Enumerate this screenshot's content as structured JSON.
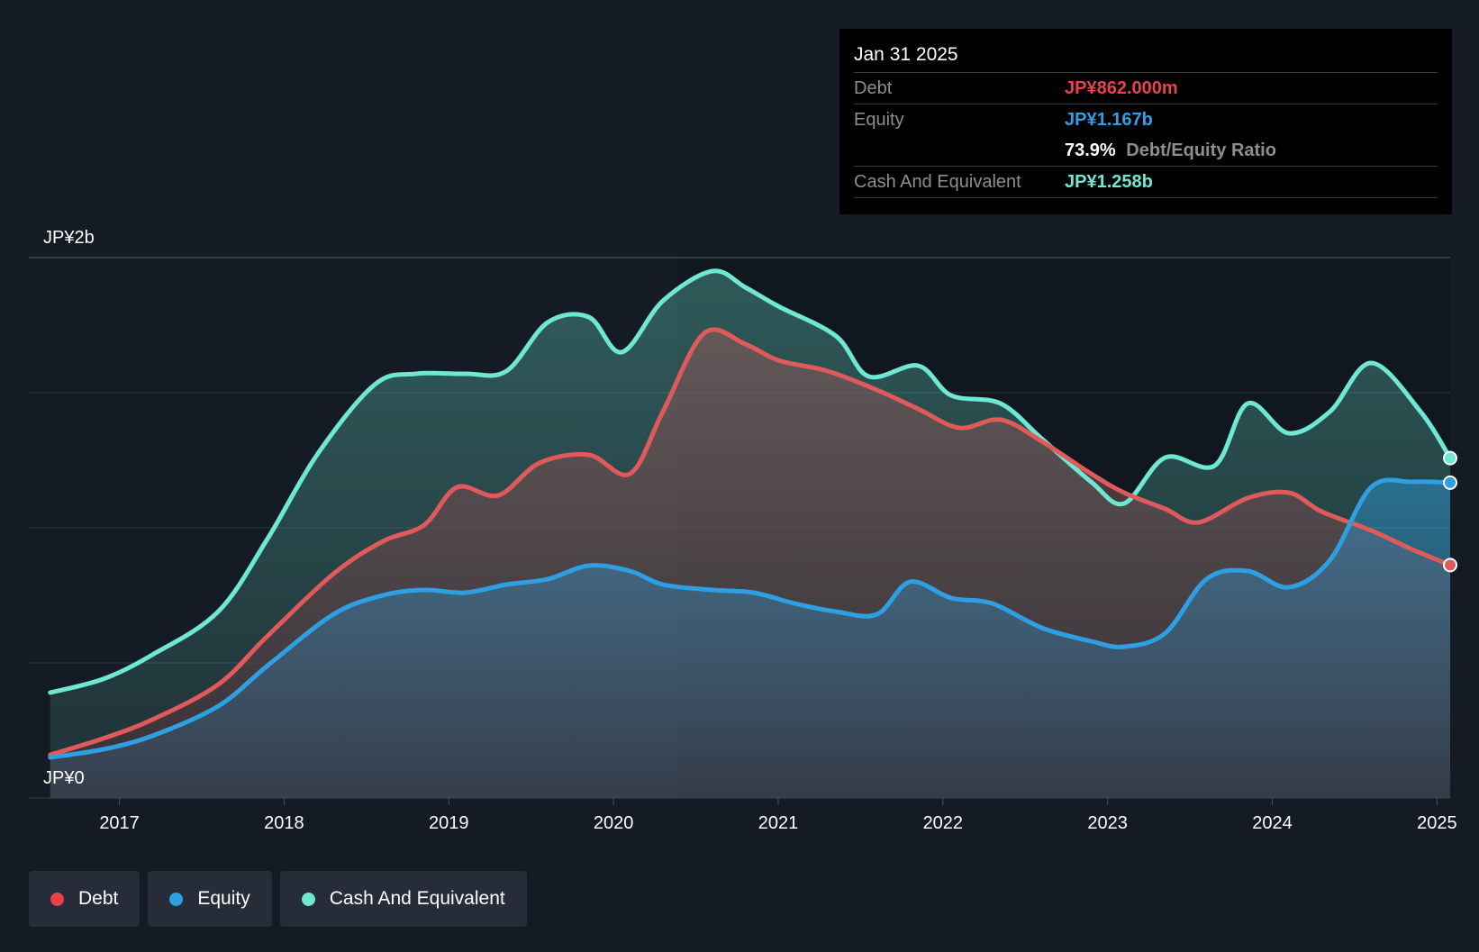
{
  "chart_data": {
    "type": "area",
    "y_axis_labels": {
      "top": "JP¥2b",
      "bottom": "JP¥0"
    },
    "ylim": [
      0,
      2000
    ],
    "xlim": [
      2016.45,
      2025.08
    ],
    "x_ticks": [
      "2017",
      "2018",
      "2019",
      "2020",
      "2021",
      "2022",
      "2023",
      "2024",
      "2025"
    ],
    "grid": true,
    "legend_position": "bottom-left",
    "series": [
      {
        "name": "Cash And Equivalent",
        "color": "#6ee7d3",
        "points": [
          [
            2016.58,
            390
          ],
          [
            2016.9,
            440
          ],
          [
            2017.2,
            530
          ],
          [
            2017.6,
            690
          ],
          [
            2017.9,
            960
          ],
          [
            2018.2,
            1270
          ],
          [
            2018.55,
            1530
          ],
          [
            2018.8,
            1570
          ],
          [
            2019.1,
            1570
          ],
          [
            2019.35,
            1580
          ],
          [
            2019.6,
            1760
          ],
          [
            2019.85,
            1780
          ],
          [
            2020.05,
            1650
          ],
          [
            2020.3,
            1840
          ],
          [
            2020.6,
            1950
          ],
          [
            2020.8,
            1890
          ],
          [
            2021.0,
            1820
          ],
          [
            2021.35,
            1710
          ],
          [
            2021.55,
            1560
          ],
          [
            2021.85,
            1600
          ],
          [
            2022.05,
            1490
          ],
          [
            2022.35,
            1460
          ],
          [
            2022.6,
            1330
          ],
          [
            2022.9,
            1170
          ],
          [
            2023.1,
            1090
          ],
          [
            2023.35,
            1260
          ],
          [
            2023.65,
            1230
          ],
          [
            2023.85,
            1460
          ],
          [
            2024.1,
            1350
          ],
          [
            2024.35,
            1430
          ],
          [
            2024.6,
            1610
          ],
          [
            2024.9,
            1430
          ],
          [
            2025.08,
            1258
          ]
        ]
      },
      {
        "name": "Debt",
        "color": "#e05a5a",
        "points": [
          [
            2016.58,
            160
          ],
          [
            2016.9,
            220
          ],
          [
            2017.2,
            290
          ],
          [
            2017.6,
            420
          ],
          [
            2017.9,
            600
          ],
          [
            2018.3,
            830
          ],
          [
            2018.6,
            950
          ],
          [
            2018.85,
            1010
          ],
          [
            2019.05,
            1150
          ],
          [
            2019.3,
            1120
          ],
          [
            2019.55,
            1240
          ],
          [
            2019.85,
            1270
          ],
          [
            2020.1,
            1200
          ],
          [
            2020.3,
            1430
          ],
          [
            2020.55,
            1720
          ],
          [
            2020.8,
            1680
          ],
          [
            2021.0,
            1620
          ],
          [
            2021.3,
            1580
          ],
          [
            2021.6,
            1510
          ],
          [
            2021.85,
            1440
          ],
          [
            2022.1,
            1370
          ],
          [
            2022.35,
            1400
          ],
          [
            2022.6,
            1320
          ],
          [
            2022.9,
            1200
          ],
          [
            2023.1,
            1130
          ],
          [
            2023.35,
            1070
          ],
          [
            2023.55,
            1020
          ],
          [
            2023.85,
            1110
          ],
          [
            2024.1,
            1130
          ],
          [
            2024.3,
            1060
          ],
          [
            2024.6,
            990
          ],
          [
            2024.85,
            920
          ],
          [
            2025.08,
            862
          ]
        ]
      },
      {
        "name": "Equity",
        "color": "#2f9fe3",
        "points": [
          [
            2016.58,
            150
          ],
          [
            2016.9,
            180
          ],
          [
            2017.2,
            230
          ],
          [
            2017.6,
            340
          ],
          [
            2017.9,
            490
          ],
          [
            2018.3,
            680
          ],
          [
            2018.6,
            750
          ],
          [
            2018.85,
            770
          ],
          [
            2019.1,
            760
          ],
          [
            2019.35,
            790
          ],
          [
            2019.6,
            810
          ],
          [
            2019.85,
            860
          ],
          [
            2020.1,
            840
          ],
          [
            2020.3,
            790
          ],
          [
            2020.6,
            770
          ],
          [
            2020.85,
            760
          ],
          [
            2021.1,
            720
          ],
          [
            2021.35,
            690
          ],
          [
            2021.6,
            680
          ],
          [
            2021.8,
            800
          ],
          [
            2022.05,
            740
          ],
          [
            2022.3,
            720
          ],
          [
            2022.6,
            630
          ],
          [
            2022.9,
            580
          ],
          [
            2023.1,
            560
          ],
          [
            2023.35,
            610
          ],
          [
            2023.6,
            810
          ],
          [
            2023.85,
            840
          ],
          [
            2024.1,
            780
          ],
          [
            2024.35,
            880
          ],
          [
            2024.6,
            1150
          ],
          [
            2024.85,
            1170
          ],
          [
            2025.08,
            1167
          ]
        ]
      }
    ]
  },
  "tooltip": {
    "date": "Jan 31 2025",
    "rows": {
      "debt": {
        "label": "Debt",
        "value": "JP¥862.000m",
        "color": "#e8424c"
      },
      "equity": {
        "label": "Equity",
        "value": "JP¥1.167b",
        "color": "#2f9fe3"
      },
      "ratio": {
        "value": "73.9%",
        "label": "Debt/Equity Ratio"
      },
      "cash": {
        "label": "Cash And Equivalent",
        "value": "JP¥1.258b",
        "color": "#6ee7d3"
      }
    }
  },
  "legend": [
    {
      "label": "Debt",
      "color": "#e8424c"
    },
    {
      "label": "Equity",
      "color": "#2f9fe3"
    },
    {
      "label": "Cash And Equivalent",
      "color": "#6ee7d3"
    }
  ]
}
